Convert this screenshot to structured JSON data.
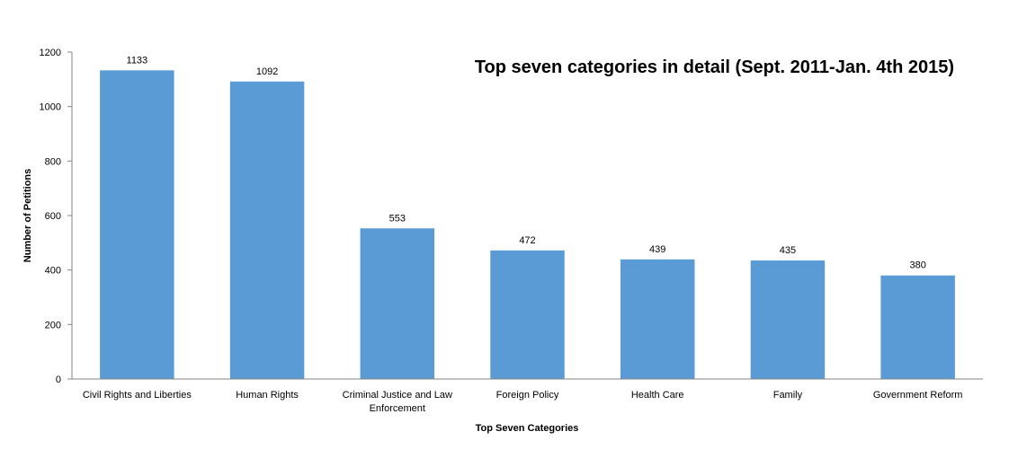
{
  "chart_data": {
    "type": "bar",
    "title": "Top seven categories in detail (Sept. 2011-Jan. 4th 2015)",
    "xlabel": "Top Seven Categories",
    "ylabel": "Number of Petitions",
    "categories": [
      [
        "Civil Rights and Liberties"
      ],
      [
        "Human Rights"
      ],
      [
        "Criminal Justice and Law",
        "Enforcement"
      ],
      [
        "Foreign Policy"
      ],
      [
        "Health Care"
      ],
      [
        "Family"
      ],
      [
        "Government Reform"
      ]
    ],
    "values": [
      1133,
      1092,
      553,
      472,
      439,
      435,
      380
    ],
    "ylim": [
      0,
      1200
    ],
    "yticks": [
      0,
      200,
      400,
      600,
      800,
      1000,
      1200
    ],
    "grid": false,
    "legend": "none",
    "bar_color": "#5B9BD5"
  }
}
